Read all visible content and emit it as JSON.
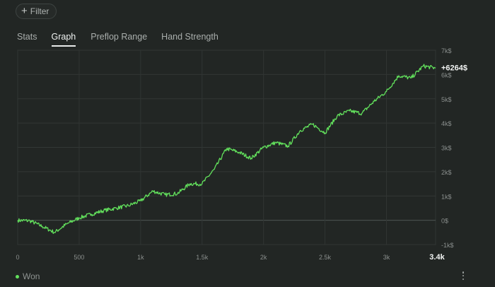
{
  "filter": {
    "label": "Filter",
    "icon": "plus-icon"
  },
  "tabs": [
    {
      "label": "Stats",
      "active": false
    },
    {
      "label": "Graph",
      "active": true
    },
    {
      "label": "Preflop Range",
      "active": false
    },
    {
      "label": "Hand Strength",
      "active": false
    }
  ],
  "chart_data": {
    "type": "line",
    "title": "",
    "xlabel": "",
    "ylabel": "",
    "xlim": [
      0,
      3400
    ],
    "ylim": [
      -1000,
      7000
    ],
    "x_ticks": [
      "0",
      "500",
      "1k",
      "1.5k",
      "2k",
      "2.5k",
      "3k",
      "3.4k"
    ],
    "x_tick_values": [
      0,
      500,
      1000,
      1500,
      2000,
      2500,
      3000,
      3400
    ],
    "y_ticks": [
      "7k$",
      "6k$",
      "5k$",
      "4k$",
      "3k$",
      "2k$",
      "1k$",
      "0$",
      "-1k$"
    ],
    "y_tick_values": [
      7000,
      6000,
      5000,
      4000,
      3000,
      2000,
      1000,
      0,
      -1000
    ],
    "grid": true,
    "last_value_label": "+6264$",
    "series": [
      {
        "name": "Won",
        "color": "#62e05c",
        "x": [
          0,
          100,
          200,
          300,
          400,
          500,
          600,
          700,
          800,
          900,
          1000,
          1100,
          1200,
          1300,
          1400,
          1500,
          1600,
          1700,
          1800,
          1900,
          2000,
          2100,
          2200,
          2300,
          2400,
          2500,
          2600,
          2700,
          2800,
          2900,
          3000,
          3100,
          3200,
          3300,
          3400
        ],
        "y": [
          0,
          -20,
          -250,
          -500,
          -150,
          100,
          250,
          400,
          500,
          600,
          800,
          1200,
          1050,
          1100,
          1500,
          1500,
          2100,
          2950,
          2800,
          2550,
          3000,
          3200,
          3050,
          3700,
          3950,
          3600,
          4300,
          4500,
          4400,
          4900,
          5300,
          5950,
          5850,
          6350,
          6264
        ]
      }
    ]
  },
  "legend": {
    "label": "Won"
  },
  "menu": {
    "icon": "more-vertical-icon"
  }
}
